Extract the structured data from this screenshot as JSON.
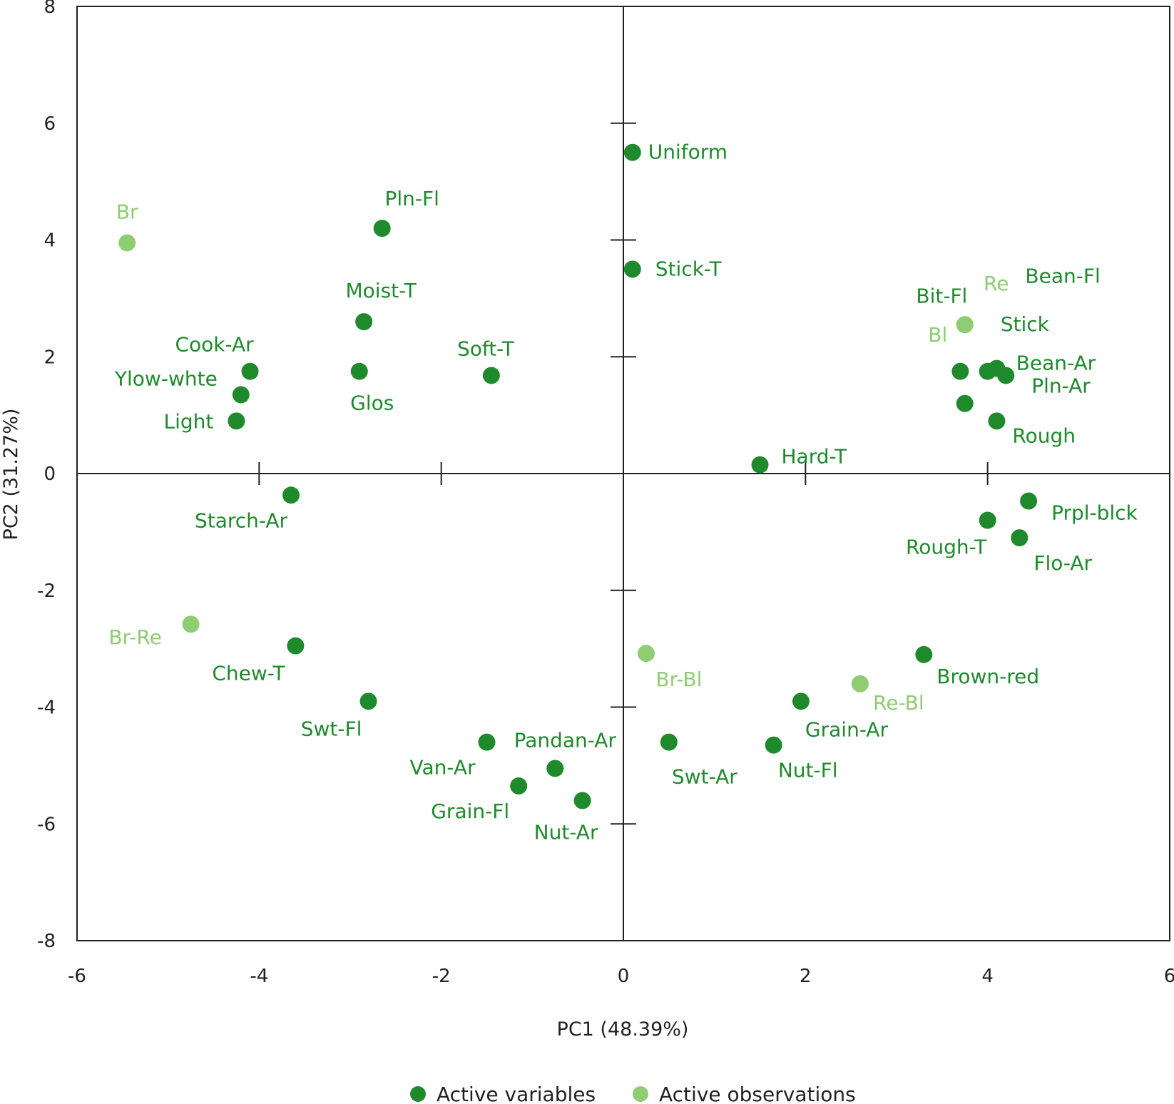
{
  "chart_data": {
    "type": "scatter",
    "xlabel": "PC1 (48.39%)",
    "ylabel": "PC2 (31.27%)",
    "xlim": [
      -6,
      6
    ],
    "ylim": [
      -8,
      8
    ],
    "x_ticks": [
      "-6",
      "-4",
      "-2",
      "0",
      "2",
      "4",
      "6"
    ],
    "y_ticks": [
      "8",
      "6",
      "4",
      "2",
      "0",
      "-2",
      "-4",
      "-6",
      "-8"
    ],
    "colors": {
      "variables": "#1e8a2c",
      "observations": "#8fcc72"
    },
    "legend": [
      {
        "name": "Active variables",
        "color": "#1e8a2c"
      },
      {
        "name": "Active observations",
        "color": "#8fcc72"
      }
    ],
    "legend_position": "bottom",
    "series": [
      {
        "name": "Active variables",
        "points": [
          {
            "label": "Uniform",
            "x": 0.1,
            "y": 5.5
          },
          {
            "label": "Stick-T",
            "x": 0.1,
            "y": 3.5
          },
          {
            "label": "Pln-Fl",
            "x": -2.65,
            "y": 4.2
          },
          {
            "label": "Moist-T",
            "x": -2.85,
            "y": 2.6
          },
          {
            "label": "Glos",
            "x": -2.9,
            "y": 1.75
          },
          {
            "label": "Soft-T",
            "x": -1.45,
            "y": 1.68
          },
          {
            "label": "Cook-Ar",
            "x": -4.1,
            "y": 1.75
          },
          {
            "label": "Ylow-whte",
            "x": -4.2,
            "y": 1.35
          },
          {
            "label": "Light",
            "x": -4.25,
            "y": 0.9
          },
          {
            "label": "Starch-Ar",
            "x": -3.65,
            "y": -0.37
          },
          {
            "label": "Chew-T",
            "x": -3.6,
            "y": -2.95
          },
          {
            "label": "Swt-Fl",
            "x": -2.8,
            "y": -3.9
          },
          {
            "label": "Van-Ar",
            "x": -1.5,
            "y": -4.6
          },
          {
            "label": "Pandan-Ar",
            "x": -0.75,
            "y": -5.05
          },
          {
            "label": "Grain-Fl",
            "x": -1.15,
            "y": -5.35
          },
          {
            "label": "Nut-Ar",
            "x": -0.45,
            "y": -5.6
          },
          {
            "label": "Swt-Ar",
            "x": 0.5,
            "y": -4.6
          },
          {
            "label": "Nut-Fl",
            "x": 1.65,
            "y": -4.65
          },
          {
            "label": "Grain-Ar",
            "x": 1.95,
            "y": -3.9
          },
          {
            "label": "Brown-red",
            "x": 3.3,
            "y": -3.1
          },
          {
            "label": "Hard-T",
            "x": 1.5,
            "y": 0.15
          },
          {
            "label": "Bit-Fl",
            "x": 3.7,
            "y": 1.75
          },
          {
            "label": "Bean-Fl",
            "x": 4.1,
            "y": 1.8
          },
          {
            "label": "Bean-Ar",
            "x": 4.0,
            "y": 1.75
          },
          {
            "label": "Pln-Ar",
            "x": 4.2,
            "y": 1.68
          },
          {
            "label": "Rough",
            "x": 4.1,
            "y": 0.9
          },
          {
            "label": "Stick",
            "x": 3.75,
            "y": 1.2
          },
          {
            "label": "Prpl-blck",
            "x": 4.45,
            "y": -0.47
          },
          {
            "label": "Rough-T",
            "x": 4.0,
            "y": -0.8
          },
          {
            "label": "Flo-Ar",
            "x": 4.35,
            "y": -1.1
          }
        ]
      },
      {
        "name": "Active observations",
        "points": [
          {
            "label": "Br",
            "x": -5.45,
            "y": 3.95
          },
          {
            "label": "Re",
            "x": 3.75,
            "y": 2.55
          },
          {
            "label": "Bl",
            "x": 3.75,
            "y": 2.55
          },
          {
            "label": "Br-Re",
            "x": -4.75,
            "y": -2.58
          },
          {
            "label": "Br-Bl",
            "x": 0.25,
            "y": -3.08
          },
          {
            "label": "Re-Bl",
            "x": 2.6,
            "y": -3.6
          }
        ]
      }
    ]
  }
}
